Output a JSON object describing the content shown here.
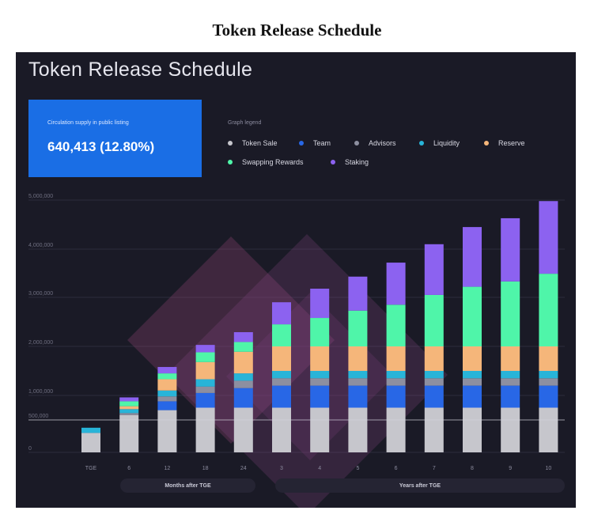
{
  "page_title": "Token Release Schedule",
  "panel_title": "Token Release Schedule",
  "supply": {
    "label": "Circulation supply in public listing",
    "value": "640,413 (12.80%)"
  },
  "legend": {
    "title": "Graph legend",
    "items": [
      {
        "label": "Token Sale",
        "color": "#c6c6cc"
      },
      {
        "label": "Team",
        "color": "#2867e6"
      },
      {
        "label": "Advisors",
        "color": "#8d8fa0"
      },
      {
        "label": "Liquidity",
        "color": "#28b4d8"
      },
      {
        "label": "Reserve",
        "color": "#f5b67a"
      },
      {
        "label": "Swapping Rewards",
        "color": "#4ff5a9"
      },
      {
        "label": "Staking",
        "color": "#8c62f0"
      }
    ]
  },
  "axis_groups": {
    "months": "Months after TGE",
    "years": "Years after TGE"
  },
  "chart_data": {
    "type": "bar",
    "stacked": true,
    "title": "Token Release Schedule",
    "categories": [
      "TGE",
      "6",
      "12",
      "18",
      "24",
      "3",
      "4",
      "5",
      "6",
      "7",
      "8",
      "9",
      "10"
    ],
    "y_tick_labels": [
      "0",
      "500,000",
      "1,000,000",
      "2,000,000",
      "3,000,000",
      "4,000,000",
      "5,000,000"
    ],
    "y_ticks": [
      0,
      500000,
      1000000,
      2000000,
      3000000,
      4000000,
      5000000
    ],
    "ylim": [
      0,
      5000000
    ],
    "grid": true,
    "legend_position": "top-right",
    "reference_line": 500000,
    "series": [
      {
        "name": "Token Sale",
        "color": "#c6c6cc",
        "values": [
          300000,
          600000,
          700000,
          750000,
          750000,
          750000,
          750000,
          750000,
          750000,
          750000,
          750000,
          750000,
          750000
        ]
      },
      {
        "name": "Team",
        "color": "#2867e6",
        "values": [
          0,
          0,
          180000,
          300000,
          400000,
          450000,
          450000,
          450000,
          450000,
          450000,
          450000,
          450000,
          450000
        ]
      },
      {
        "name": "Advisors",
        "color": "#8d8fa0",
        "values": [
          0,
          40000,
          100000,
          130000,
          150000,
          150000,
          150000,
          150000,
          150000,
          150000,
          150000,
          150000,
          150000
        ]
      },
      {
        "name": "Liquidity",
        "color": "#28b4d8",
        "values": [
          80000,
          80000,
          120000,
          150000,
          150000,
          150000,
          150000,
          150000,
          150000,
          150000,
          150000,
          150000,
          150000
        ]
      },
      {
        "name": "Reserve",
        "color": "#f5b67a",
        "values": [
          0,
          60000,
          230000,
          350000,
          440000,
          500000,
          500000,
          500000,
          500000,
          500000,
          500000,
          500000,
          500000
        ]
      },
      {
        "name": "Swapping Rewards",
        "color": "#4ff5a9",
        "values": [
          0,
          100000,
          120000,
          200000,
          200000,
          450000,
          580000,
          730000,
          850000,
          1050000,
          1220000,
          1330000,
          1490000
        ]
      },
      {
        "name": "Staking",
        "color": "#8c62f0",
        "values": [
          0,
          80000,
          130000,
          150000,
          200000,
          450000,
          600000,
          700000,
          870000,
          1050000,
          1230000,
          1300000,
          1490000
        ]
      }
    ]
  }
}
